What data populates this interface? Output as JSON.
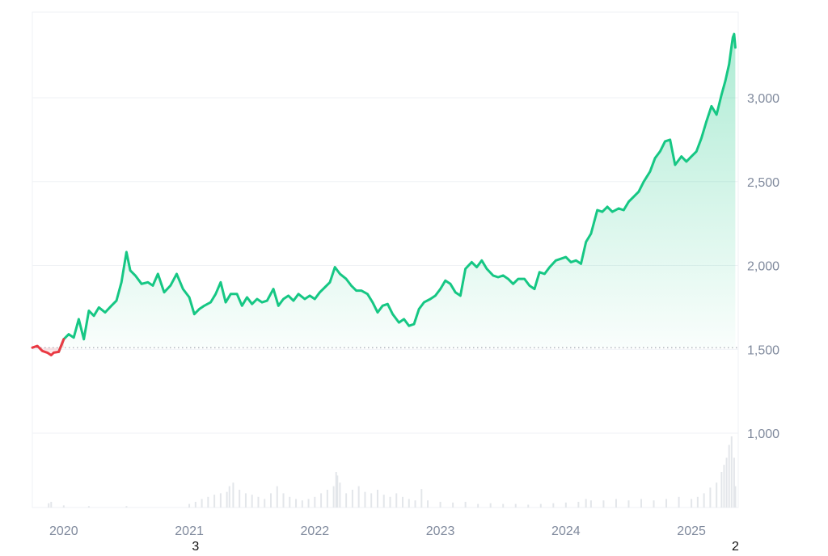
{
  "chart_data": {
    "type": "area",
    "title": "",
    "xlabel": "",
    "ylabel": "",
    "x_range": [
      "2019-10",
      "2025-04"
    ],
    "ylim": [
      900,
      3500
    ],
    "y_ticks": [
      {
        "value": 3000,
        "label": "3,000"
      },
      {
        "value": 2500,
        "label": "2,500"
      },
      {
        "value": 2000,
        "label": "2,000"
      },
      {
        "value": 1500,
        "label": "1,500"
      },
      {
        "value": 1000,
        "label": "1,000"
      }
    ],
    "x_ticks": [
      {
        "value": 2020,
        "label": "2020"
      },
      {
        "value": 2021,
        "label": "2021"
      },
      {
        "value": 2022,
        "label": "2022"
      },
      {
        "value": 2023,
        "label": "2023"
      },
      {
        "value": 2024,
        "label": "2024"
      },
      {
        "value": 2025,
        "label": "2025"
      }
    ],
    "baseline": 1510,
    "colors": {
      "up": "#16c784",
      "down": "#ea3943",
      "grid": "#eff2f5",
      "axis_text": "#808a9d",
      "volume": "#e3e6ea"
    },
    "series": [
      {
        "values": [
          [
            2019.75,
            1510
          ],
          [
            2019.79,
            1520
          ],
          [
            2019.83,
            1490
          ],
          [
            2019.87,
            1480
          ],
          [
            2019.9,
            1465
          ],
          [
            2019.92,
            1480
          ],
          [
            2019.96,
            1485
          ],
          [
            2020.0,
            1560
          ],
          [
            2020.04,
            1590
          ],
          [
            2020.08,
            1570
          ],
          [
            2020.12,
            1680
          ],
          [
            2020.16,
            1560
          ],
          [
            2020.2,
            1730
          ],
          [
            2020.24,
            1700
          ],
          [
            2020.28,
            1750
          ],
          [
            2020.33,
            1720
          ],
          [
            2020.38,
            1760
          ],
          [
            2020.42,
            1790
          ],
          [
            2020.46,
            1900
          ],
          [
            2020.5,
            2080
          ],
          [
            2020.53,
            1970
          ],
          [
            2020.57,
            1940
          ],
          [
            2020.62,
            1890
          ],
          [
            2020.67,
            1900
          ],
          [
            2020.71,
            1880
          ],
          [
            2020.75,
            1950
          ],
          [
            2020.8,
            1840
          ],
          [
            2020.85,
            1880
          ],
          [
            2020.9,
            1950
          ],
          [
            2020.95,
            1860
          ],
          [
            2021.0,
            1810
          ],
          [
            2021.04,
            1710
          ],
          [
            2021.08,
            1740
          ],
          [
            2021.12,
            1760
          ],
          [
            2021.17,
            1780
          ],
          [
            2021.21,
            1830
          ],
          [
            2021.25,
            1900
          ],
          [
            2021.29,
            1780
          ],
          [
            2021.33,
            1830
          ],
          [
            2021.38,
            1830
          ],
          [
            2021.42,
            1760
          ],
          [
            2021.46,
            1810
          ],
          [
            2021.5,
            1770
          ],
          [
            2021.54,
            1800
          ],
          [
            2021.58,
            1780
          ],
          [
            2021.62,
            1790
          ],
          [
            2021.67,
            1860
          ],
          [
            2021.71,
            1760
          ],
          [
            2021.75,
            1800
          ],
          [
            2021.79,
            1820
          ],
          [
            2021.83,
            1790
          ],
          [
            2021.87,
            1830
          ],
          [
            2021.92,
            1800
          ],
          [
            2021.96,
            1820
          ],
          [
            2022.0,
            1800
          ],
          [
            2022.04,
            1840
          ],
          [
            2022.08,
            1870
          ],
          [
            2022.12,
            1900
          ],
          [
            2022.16,
            1990
          ],
          [
            2022.2,
            1950
          ],
          [
            2022.25,
            1920
          ],
          [
            2022.29,
            1880
          ],
          [
            2022.33,
            1850
          ],
          [
            2022.37,
            1850
          ],
          [
            2022.42,
            1830
          ],
          [
            2022.46,
            1780
          ],
          [
            2022.5,
            1720
          ],
          [
            2022.54,
            1760
          ],
          [
            2022.58,
            1770
          ],
          [
            2022.62,
            1710
          ],
          [
            2022.67,
            1660
          ],
          [
            2022.71,
            1680
          ],
          [
            2022.75,
            1640
          ],
          [
            2022.79,
            1650
          ],
          [
            2022.83,
            1740
          ],
          [
            2022.87,
            1780
          ],
          [
            2022.92,
            1800
          ],
          [
            2022.96,
            1820
          ],
          [
            2023.0,
            1860
          ],
          [
            2023.04,
            1910
          ],
          [
            2023.08,
            1890
          ],
          [
            2023.12,
            1840
          ],
          [
            2023.16,
            1820
          ],
          [
            2023.2,
            1980
          ],
          [
            2023.25,
            2020
          ],
          [
            2023.29,
            1990
          ],
          [
            2023.33,
            2030
          ],
          [
            2023.37,
            1980
          ],
          [
            2023.42,
            1940
          ],
          [
            2023.46,
            1930
          ],
          [
            2023.5,
            1940
          ],
          [
            2023.54,
            1920
          ],
          [
            2023.58,
            1890
          ],
          [
            2023.62,
            1920
          ],
          [
            2023.67,
            1920
          ],
          [
            2023.71,
            1880
          ],
          [
            2023.75,
            1860
          ],
          [
            2023.79,
            1960
          ],
          [
            2023.83,
            1950
          ],
          [
            2023.87,
            1990
          ],
          [
            2023.92,
            2030
          ],
          [
            2023.96,
            2040
          ],
          [
            2024.0,
            2050
          ],
          [
            2024.04,
            2020
          ],
          [
            2024.08,
            2030
          ],
          [
            2024.12,
            2010
          ],
          [
            2024.16,
            2140
          ],
          [
            2024.2,
            2190
          ],
          [
            2024.25,
            2330
          ],
          [
            2024.29,
            2320
          ],
          [
            2024.33,
            2350
          ],
          [
            2024.37,
            2320
          ],
          [
            2024.42,
            2340
          ],
          [
            2024.46,
            2330
          ],
          [
            2024.5,
            2380
          ],
          [
            2024.54,
            2410
          ],
          [
            2024.58,
            2440
          ],
          [
            2024.62,
            2500
          ],
          [
            2024.67,
            2560
          ],
          [
            2024.71,
            2640
          ],
          [
            2024.75,
            2680
          ],
          [
            2024.79,
            2740
          ],
          [
            2024.83,
            2750
          ],
          [
            2024.87,
            2600
          ],
          [
            2024.92,
            2650
          ],
          [
            2024.96,
            2620
          ],
          [
            2025.0,
            2650
          ],
          [
            2025.04,
            2680
          ],
          [
            2025.08,
            2760
          ],
          [
            2025.12,
            2860
          ],
          [
            2025.16,
            2950
          ],
          [
            2025.2,
            2900
          ],
          [
            2025.24,
            3020
          ],
          [
            2025.27,
            3100
          ],
          [
            2025.3,
            3200
          ],
          [
            2025.32,
            3310
          ],
          [
            2025.33,
            3360
          ],
          [
            2025.34,
            3380
          ],
          [
            2025.35,
            3300
          ]
        ]
      }
    ],
    "volume": [
      [
        2019.88,
        0.06
      ],
      [
        2019.9,
        0.08
      ],
      [
        2020.0,
        0.03
      ],
      [
        2020.2,
        0.02
      ],
      [
        2020.5,
        0.02
      ],
      [
        2021.0,
        0.05
      ],
      [
        2021.05,
        0.08
      ],
      [
        2021.1,
        0.12
      ],
      [
        2021.15,
        0.15
      ],
      [
        2021.2,
        0.18
      ],
      [
        2021.25,
        0.2
      ],
      [
        2021.3,
        0.22
      ],
      [
        2021.32,
        0.3
      ],
      [
        2021.35,
        0.35
      ],
      [
        2021.4,
        0.25
      ],
      [
        2021.45,
        0.2
      ],
      [
        2021.5,
        0.18
      ],
      [
        2021.55,
        0.15
      ],
      [
        2021.6,
        0.12
      ],
      [
        2021.65,
        0.2
      ],
      [
        2021.7,
        0.3
      ],
      [
        2021.75,
        0.2
      ],
      [
        2021.8,
        0.15
      ],
      [
        2021.85,
        0.12
      ],
      [
        2021.9,
        0.1
      ],
      [
        2021.95,
        0.12
      ],
      [
        2022.0,
        0.15
      ],
      [
        2022.05,
        0.2
      ],
      [
        2022.1,
        0.25
      ],
      [
        2022.15,
        0.3
      ],
      [
        2022.17,
        0.5
      ],
      [
        2022.18,
        0.45
      ],
      [
        2022.2,
        0.35
      ],
      [
        2022.25,
        0.2
      ],
      [
        2022.3,
        0.25
      ],
      [
        2022.35,
        0.3
      ],
      [
        2022.4,
        0.22
      ],
      [
        2022.45,
        0.2
      ],
      [
        2022.5,
        0.25
      ],
      [
        2022.55,
        0.18
      ],
      [
        2022.6,
        0.15
      ],
      [
        2022.65,
        0.2
      ],
      [
        2022.7,
        0.15
      ],
      [
        2022.75,
        0.12
      ],
      [
        2022.8,
        0.1
      ],
      [
        2022.85,
        0.26
      ],
      [
        2022.9,
        0.1
      ],
      [
        2023.0,
        0.08
      ],
      [
        2023.1,
        0.07
      ],
      [
        2023.2,
        0.08
      ],
      [
        2023.3,
        0.05
      ],
      [
        2023.4,
        0.06
      ],
      [
        2023.5,
        0.05
      ],
      [
        2023.6,
        0.05
      ],
      [
        2023.7,
        0.04
      ],
      [
        2023.8,
        0.05
      ],
      [
        2023.9,
        0.06
      ],
      [
        2024.0,
        0.07
      ],
      [
        2024.1,
        0.08
      ],
      [
        2024.16,
        0.12
      ],
      [
        2024.2,
        0.1
      ],
      [
        2024.3,
        0.1
      ],
      [
        2024.4,
        0.12
      ],
      [
        2024.5,
        0.1
      ],
      [
        2024.6,
        0.12
      ],
      [
        2024.7,
        0.1
      ],
      [
        2024.8,
        0.12
      ],
      [
        2024.9,
        0.15
      ],
      [
        2025.0,
        0.12
      ],
      [
        2025.05,
        0.15
      ],
      [
        2025.1,
        0.2
      ],
      [
        2025.15,
        0.28
      ],
      [
        2025.2,
        0.35
      ],
      [
        2025.24,
        0.5
      ],
      [
        2025.26,
        0.6
      ],
      [
        2025.28,
        0.7
      ],
      [
        2025.3,
        0.88
      ],
      [
        2025.32,
        1.0
      ],
      [
        2025.34,
        0.7
      ],
      [
        2025.35,
        0.3
      ]
    ],
    "annotations": [
      {
        "text": "3",
        "x": 2021.05
      },
      {
        "text": "2",
        "x": 2025.35
      }
    ]
  }
}
